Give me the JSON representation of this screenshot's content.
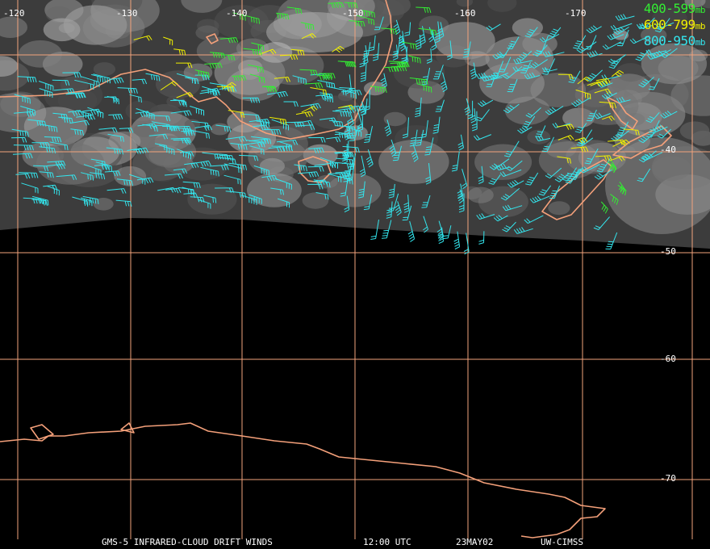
{
  "colors": {
    "background": "#000000",
    "cloud": "#9a9a9a",
    "gridline": "#f2a37c",
    "coastline": "#f4a07a",
    "layer_400_599": "#33ee33",
    "layer_600_799": "#f0f000",
    "layer_800_950": "#33e6ee",
    "label": "#ffffff"
  },
  "legend": {
    "items": [
      {
        "label": "400-599",
        "unit": "mb",
        "color": "#33ee33"
      },
      {
        "label": "600-799",
        "unit": "mb",
        "color": "#f0f000"
      },
      {
        "label": "800-950",
        "unit": "mb",
        "color": "#33e6ee"
      }
    ]
  },
  "grid": {
    "longitude_labels": [
      "-120",
      "-130",
      "-140",
      "-150",
      "-160",
      "-170"
    ],
    "latitude_labels": [
      "-40",
      "-50",
      "-60",
      "-70"
    ]
  },
  "caption": {
    "product": "GMS-5 INFRARED-CLOUD DRIFT WINDS",
    "time": "12:00 UTC",
    "date": "23MAY02",
    "source": "UW-CIMSS"
  },
  "map_features": [
    "cloud-imagery",
    "coastlines",
    "wind-barbs"
  ]
}
